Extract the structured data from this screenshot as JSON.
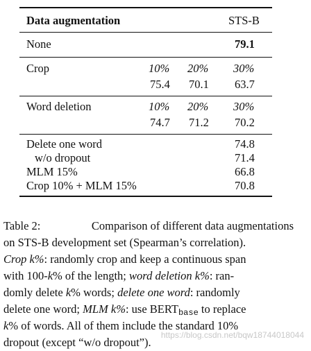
{
  "table": {
    "header": {
      "col1": "Data augmentation",
      "col2": "STS-B"
    },
    "none": {
      "label": "None",
      "value": "79.1"
    },
    "crop": {
      "label": "Crop",
      "pcts": [
        "10%",
        "20%",
        "30%"
      ],
      "values": [
        "75.4",
        "70.1",
        "63.7"
      ]
    },
    "word_deletion": {
      "label": "Word deletion",
      "pcts": [
        "10%",
        "20%",
        "30%"
      ],
      "values": [
        "74.7",
        "71.2",
        "70.2"
      ]
    },
    "others": [
      {
        "label": "Delete one word",
        "value": "74.8"
      },
      {
        "label": "w/o dropout",
        "value": "71.4"
      },
      {
        "label": "MLM 15%",
        "value": "66.8"
      },
      {
        "label": "Crop 10% + MLM 15%",
        "value": "70.8"
      }
    ]
  },
  "caption": {
    "l1a": "Table 2:",
    "l1b": "Comparison of different data augmentations",
    "l2": "on STS-B development set (Spearman’s correlation).",
    "l3a": "Crop k%",
    "l3b": ": randomly crop and keep a continuous span",
    "l4a": "with 100-",
    "l4b": "k",
    "l4c": "% of the length;",
    "l4d": "word deletion k%",
    "l4e": ": ran-",
    "l5a": "domly delete",
    "l5b": "k",
    "l5c": "% words;",
    "l5d": "delete one word",
    "l5e": ": randomly",
    "l6a": "delete one word;",
    "l6b": "MLM k%",
    "l6c": ": use BERT",
    "l6d": "base",
    "l6e": "to replace",
    "l7a": "k",
    "l7b": "% of words. All of them include the standard 10%",
    "l8": "dropout (except “w/o dropout”)."
  },
  "watermark": "https://blog.csdn.net/bqw18744018044"
}
